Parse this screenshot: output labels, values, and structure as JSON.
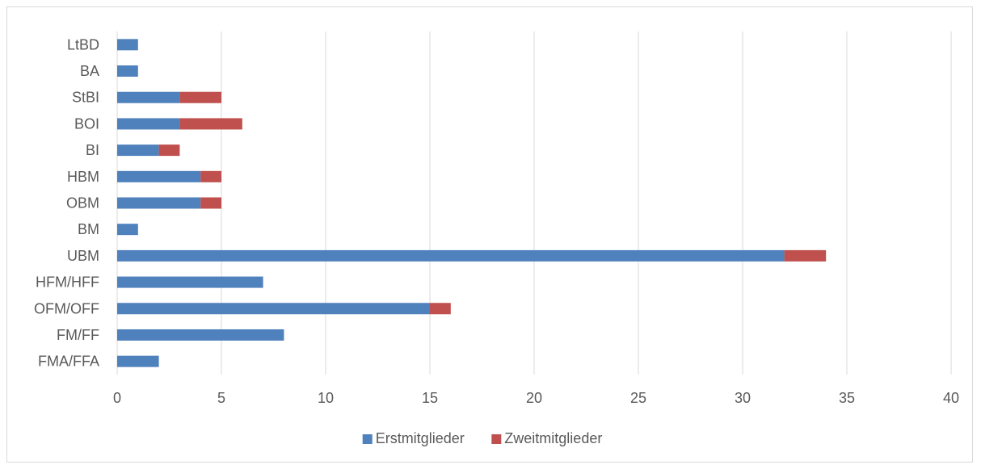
{
  "chart_data": {
    "type": "bar",
    "orientation": "horizontal",
    "stacked": true,
    "categories": [
      "FMA/FFA",
      "FM/FF",
      "OFM/OFF",
      "HFM/HFF",
      "UBM",
      "BM",
      "OBM",
      "HBM",
      "BI",
      "BOI",
      "StBI",
      "BA",
      "LtBD"
    ],
    "series": [
      {
        "name": "Erstmitglieder",
        "color": "#4f81bd",
        "values": [
          2,
          8,
          15,
          7,
          32,
          1,
          4,
          4,
          2,
          3,
          3,
          1,
          1
        ]
      },
      {
        "name": "Zweitmitglieder",
        "color": "#c0504d",
        "values": [
          0,
          0,
          1,
          0,
          2,
          0,
          1,
          1,
          1,
          3,
          2,
          0,
          0
        ]
      }
    ],
    "xlim": [
      0,
      40
    ],
    "x_ticks": [
      "0",
      "5",
      "10",
      "15",
      "20",
      "25",
      "30",
      "35",
      "40"
    ],
    "grid": "vertical",
    "legend_position": "bottom"
  }
}
